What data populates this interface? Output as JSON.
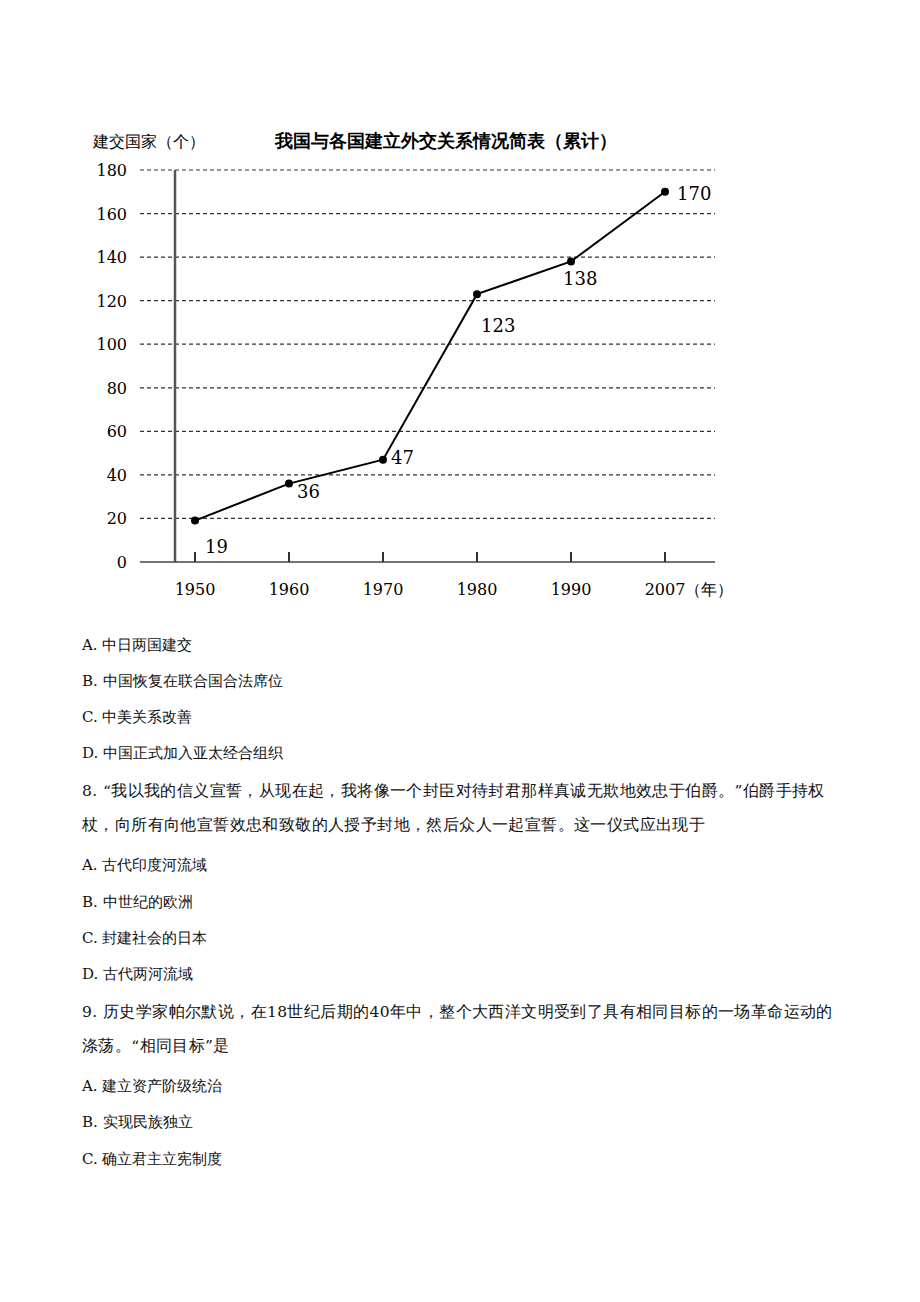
{
  "chart_data": {
    "type": "line",
    "title": "我国与各国建立外交关系情况简表（累计）",
    "y_label": "建交国家（个）",
    "x_label": "（年）",
    "categories": [
      "1950",
      "1960",
      "1970",
      "1980",
      "1990",
      "2007"
    ],
    "values": [
      19,
      36,
      47,
      123,
      138,
      170
    ],
    "color": "#000000",
    "marker": "circle",
    "data_labels": true,
    "grid": true,
    "ylim": [
      0,
      180
    ],
    "yticks": [
      0,
      20,
      40,
      60,
      80,
      100,
      120,
      140,
      160,
      180
    ]
  },
  "questions": [
    {
      "options": [
        "A. 中日两国建交",
        "B. 中国恢复在联合国合法席位",
        "C. 中美关系改善",
        "D. 中国正式加入亚太经合组织"
      ]
    },
    {
      "stem": "8. “我以我的信义宣誓，从现在起，我将像一个封臣对待封君那样真诚无欺地效忠于伯爵。”伯爵手持权杖，向所有向他宣誓效忠和致敬的人授予封地，然后众人一起宣誓。这一仪式应出现于",
      "options": [
        "A. 古代印度河流域",
        "B. 中世纪的欧洲",
        "C. 封建社会的日本",
        "D. 古代两河流域"
      ]
    },
    {
      "stem": "9. 历史学家帕尔默说，在18世纪后期的40年中，整个大西洋文明受到了具有相同目标的一场革命运动的涤荡。“相同目标”是",
      "options": [
        "A. 建立资产阶级统治",
        "B. 实现民族独立",
        "C. 确立君主立宪制度"
      ]
    }
  ]
}
